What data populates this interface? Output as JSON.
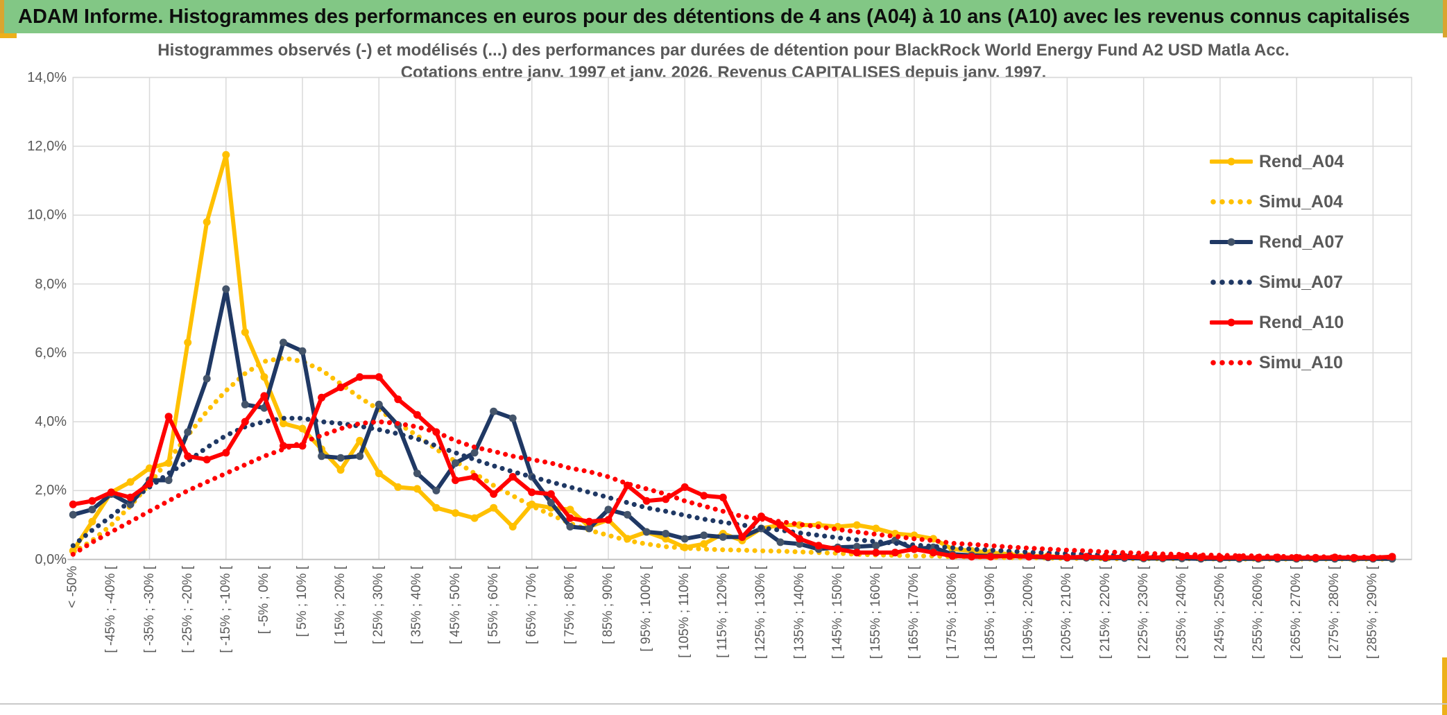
{
  "header": {
    "title": "ADAM Informe. Histogrammes des performances en euros pour des détentions de 4 ans (A04) à 10 ans (A10) avec les revenus connus capitalisés"
  },
  "chart": {
    "title_line1": "Histogrammes observés (-) et modélisés (...) des performances par durées de détention pour BlackRock World Energy Fund A2 USD Matla Acc.",
    "title_line2": "Cotations entre janv. 1997 et janv. 2026. Revenus CAPITALISES depuis janv. 1997."
  },
  "colors": {
    "gold_series": "#FFC000",
    "navy_series": "#1F3864",
    "navy_marker": "#44546A",
    "red_series": "#FF0000",
    "grid": "#D9D9D9",
    "axis": "#BFBFBF",
    "text_grey": "#595959",
    "header_green": "#82C785",
    "gold_accent": "#EDB01A"
  },
  "chart_data": {
    "type": "line",
    "title": "Histogrammes observés (-) et modélisés (...) des performances par durées de détention pour BlackRock World Energy Fund A2 USD Matla Acc. Cotations entre janv. 1997 et janv. 2026. Revenus CAPITALISES depuis janv. 1997.",
    "xlabel": "",
    "ylabel": "",
    "ylim": [
      0,
      14
    ],
    "y_tick_labels": [
      "14,0%",
      "12,0%",
      "10,0%",
      "8,0%",
      "6,0%",
      "4,0%",
      "2,0%",
      "0,0%"
    ],
    "y_tick_values": [
      14,
      12,
      10,
      8,
      6,
      4,
      2,
      0
    ],
    "grid": true,
    "legend_position": "right",
    "bin_width_pct": 5,
    "n_points": 70,
    "x_label_interval": 2,
    "x_tick_labels": [
      "< -50%",
      "[ -45% ; -40% [",
      "[ -35% ; -30% [",
      "[ -25% ; -20% [",
      "[ -15% ; -10% [",
      "[ -5% ; 0% [",
      "[ 5% ; 10% [",
      "[ 15% ; 20% [",
      "[ 25% ; 30% [",
      "[ 35% ; 40% [",
      "[ 45% ; 50% [",
      "[ 55% ; 60% [",
      "[ 65% ; 70% [",
      "[ 75% ; 80% [",
      "[ 85% ; 90% [",
      "[ 95% ; 100% [",
      "[ 105% ; 110% [",
      "[ 115% ; 120% [",
      "[ 125% ; 130% [",
      "[ 135% ; 140% [",
      "[ 145% ; 150% [",
      "[ 155% ; 160% [",
      "[ 165% ; 170% [",
      "[ 175% ; 180% [",
      "[ 185% ; 190% [",
      "[ 195% ; 200% [",
      "[ 205% ; 210% [",
      "[ 215% ; 220% [",
      "[ 225% ; 230% [",
      "[ 235% ; 240% [",
      "[ 245% ; 250% [",
      "[ 255% ; 260% [",
      "[ 265% ; 270% [",
      "[ 275% ; 280% [",
      "[ 285% ; 290% ["
    ],
    "series": [
      {
        "name": "Rend_A04",
        "style": "solid",
        "color": "#FFC000",
        "marker_color": "#FFC000",
        "values": [
          0.25,
          1.1,
          1.95,
          2.25,
          2.65,
          2.8,
          6.3,
          9.8,
          11.75,
          6.6,
          5.3,
          3.95,
          3.8,
          3.2,
          2.6,
          3.45,
          2.5,
          2.1,
          2.05,
          1.5,
          1.35,
          1.2,
          1.5,
          0.95,
          1.6,
          1.5,
          1.45,
          0.95,
          1.15,
          0.6,
          0.8,
          0.6,
          0.35,
          0.45,
          0.75,
          0.55,
          0.9,
          1.0,
          1.0,
          1.0,
          0.95,
          1.0,
          0.9,
          0.75,
          0.7,
          0.6,
          0.3,
          0.25,
          0.2,
          0.15,
          0.1,
          0.1,
          0.05,
          0.05,
          0.05,
          0.05,
          0.03,
          0.03,
          0.03,
          0.03,
          0.02,
          0.02,
          0.02,
          0.02,
          0.02,
          0.02,
          0.02,
          0.02,
          0.02,
          0.02
        ]
      },
      {
        "name": "Simu_A04",
        "style": "dotted",
        "color": "#FFC000",
        "values": [
          0.2,
          0.55,
          1.0,
          1.55,
          2.2,
          2.9,
          3.6,
          4.3,
          4.9,
          5.4,
          5.75,
          5.85,
          5.75,
          5.5,
          5.1,
          4.7,
          4.35,
          3.95,
          3.6,
          3.2,
          2.85,
          2.5,
          2.15,
          1.85,
          1.55,
          1.3,
          1.05,
          0.85,
          0.7,
          0.55,
          0.45,
          0.37,
          0.33,
          0.3,
          0.28,
          0.27,
          0.25,
          0.24,
          0.22,
          0.2,
          0.18,
          0.15,
          0.13,
          0.12,
          0.1,
          0.1,
          0.08,
          0.07,
          0.06,
          0.05,
          0.05,
          0.04,
          0.03,
          0.03,
          0.02,
          0.02,
          0.02,
          0.02,
          0.02,
          0.02,
          0.01,
          0.01,
          0.01,
          0.01,
          0.01,
          0.01,
          0.01,
          0.01,
          0.01,
          0.01
        ]
      },
      {
        "name": "Rend_A07",
        "style": "solid",
        "color": "#1F3864",
        "marker_color": "#44546A",
        "values": [
          1.3,
          1.45,
          1.9,
          1.6,
          2.3,
          2.3,
          3.7,
          5.25,
          7.85,
          4.5,
          4.4,
          6.3,
          6.05,
          3.0,
          2.95,
          3.0,
          4.5,
          3.9,
          2.5,
          2.0,
          2.8,
          3.1,
          4.3,
          4.1,
          2.4,
          1.65,
          0.95,
          0.9,
          1.45,
          1.3,
          0.8,
          0.75,
          0.6,
          0.7,
          0.65,
          0.65,
          0.9,
          0.5,
          0.45,
          0.3,
          0.35,
          0.37,
          0.4,
          0.55,
          0.3,
          0.35,
          0.15,
          0.12,
          0.1,
          0.1,
          0.08,
          0.06,
          0.05,
          0.05,
          0.04,
          0.04,
          0.03,
          0.03,
          0.03,
          0.02,
          0.02,
          0.02,
          0.02,
          0.02,
          0.02,
          0.02,
          0.02,
          0.02,
          0.02,
          0.02
        ]
      },
      {
        "name": "Simu_A07",
        "style": "dotted",
        "color": "#1F3864",
        "values": [
          0.4,
          0.85,
          1.25,
          1.7,
          2.1,
          2.5,
          2.85,
          3.25,
          3.6,
          3.85,
          4.0,
          4.1,
          4.1,
          4.0,
          3.95,
          3.87,
          3.77,
          3.65,
          3.5,
          3.3,
          3.1,
          2.9,
          2.72,
          2.55,
          2.4,
          2.25,
          2.1,
          1.95,
          1.8,
          1.65,
          1.5,
          1.4,
          1.28,
          1.17,
          1.08,
          1.0,
          0.92,
          0.85,
          0.77,
          0.7,
          0.63,
          0.57,
          0.52,
          0.47,
          0.42,
          0.38,
          0.34,
          0.3,
          0.27,
          0.24,
          0.21,
          0.19,
          0.17,
          0.15,
          0.13,
          0.12,
          0.1,
          0.09,
          0.08,
          0.07,
          0.06,
          0.06,
          0.05,
          0.05,
          0.04,
          0.04,
          0.03,
          0.03,
          0.03,
          0.03
        ]
      },
      {
        "name": "Rend_A10",
        "style": "solid",
        "color": "#FF0000",
        "marker_color": "#FF0000",
        "values": [
          1.6,
          1.7,
          1.95,
          1.8,
          2.2,
          4.15,
          3.0,
          2.9,
          3.1,
          4.0,
          4.75,
          3.3,
          3.3,
          4.7,
          5.0,
          5.3,
          5.3,
          4.65,
          4.2,
          3.7,
          2.3,
          2.4,
          1.9,
          2.4,
          1.95,
          1.9,
          1.2,
          1.1,
          1.15,
          2.15,
          1.7,
          1.75,
          2.1,
          1.85,
          1.8,
          0.65,
          1.25,
          1.0,
          0.6,
          0.4,
          0.3,
          0.2,
          0.2,
          0.2,
          0.3,
          0.2,
          0.1,
          0.08,
          0.08,
          0.1,
          0.08,
          0.08,
          0.06,
          0.08,
          0.06,
          0.08,
          0.06,
          0.06,
          0.08,
          0.06,
          0.05,
          0.06,
          0.05,
          0.06,
          0.05,
          0.05,
          0.06,
          0.05,
          0.05,
          0.08
        ]
      },
      {
        "name": "Simu_A10",
        "style": "dotted",
        "color": "#FF0000",
        "values": [
          0.15,
          0.5,
          0.8,
          1.1,
          1.4,
          1.7,
          2.0,
          2.25,
          2.5,
          2.75,
          3.0,
          3.2,
          3.4,
          3.6,
          3.8,
          3.95,
          4.0,
          3.95,
          3.85,
          3.7,
          3.45,
          3.26,
          3.14,
          3.0,
          2.9,
          2.8,
          2.65,
          2.55,
          2.4,
          2.2,
          2.05,
          1.9,
          1.7,
          1.55,
          1.4,
          1.25,
          1.17,
          1.1,
          1.02,
          0.95,
          0.87,
          0.8,
          0.73,
          0.67,
          0.6,
          0.55,
          0.47,
          0.44,
          0.4,
          0.36,
          0.33,
          0.3,
          0.27,
          0.25,
          0.22,
          0.2,
          0.18,
          0.16,
          0.15,
          0.13,
          0.12,
          0.11,
          0.1,
          0.09,
          0.08,
          0.08,
          0.07,
          0.07,
          0.06,
          0.06
        ]
      }
    ]
  },
  "legend": {
    "entries": [
      {
        "label": "Rend_A04",
        "color": "#FFC000",
        "marker": "#FFC000",
        "style": "solid"
      },
      {
        "label": "Simu_A04",
        "color": "#FFC000",
        "style": "dotted"
      },
      {
        "label": "Rend_A07",
        "color": "#1F3864",
        "marker": "#44546A",
        "style": "solid"
      },
      {
        "label": "Simu_A07",
        "color": "#1F3864",
        "style": "dotted"
      },
      {
        "label": "Rend_A10",
        "color": "#FF0000",
        "marker": "#FF0000",
        "style": "solid"
      },
      {
        "label": "Simu_A10",
        "color": "#FF0000",
        "style": "dotted"
      }
    ]
  }
}
